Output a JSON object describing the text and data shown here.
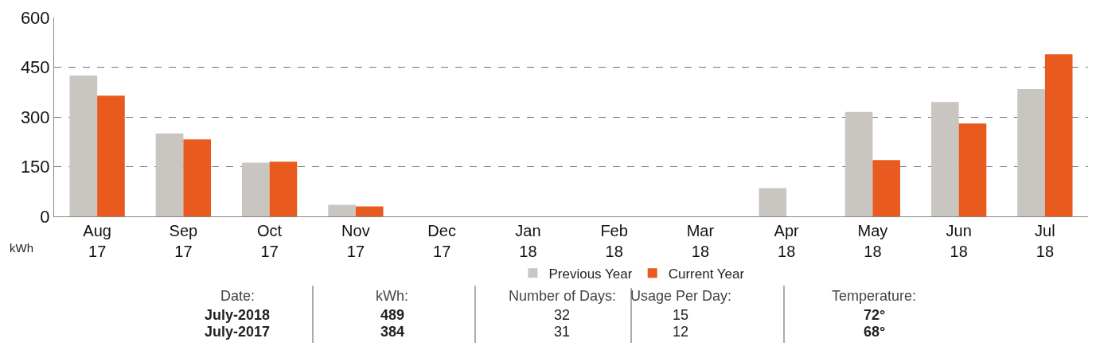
{
  "chart_data": {
    "type": "bar",
    "categories": [
      "Aug 17",
      "Sep 17",
      "Oct 17",
      "Nov 17",
      "Dec 17",
      "Jan 18",
      "Feb 18",
      "Mar 18",
      "Apr 18",
      "May 18",
      "Jun 18",
      "Jul 18"
    ],
    "series": [
      {
        "name": "Previous Year",
        "color": "#c9c6c1",
        "values": [
          425,
          250,
          162,
          35,
          null,
          null,
          null,
          null,
          85,
          315,
          345,
          384
        ]
      },
      {
        "name": "Current Year",
        "color": "#e85a1e",
        "values": [
          364,
          232,
          165,
          30,
          null,
          null,
          null,
          null,
          null,
          170,
          280,
          489
        ]
      }
    ],
    "ylabel": "kWh",
    "ylim": [
      0,
      600
    ],
    "yticks": [
      0,
      150,
      300,
      450,
      600
    ],
    "grid": "y",
    "legend": "bottom",
    "annotations": [
      "Date:",
      "kWh:",
      "Number of Days:",
      "Usage Per Day:",
      "Temperature:",
      "July-2018",
      "489",
      "32",
      "15",
      "72°",
      "July-2017",
      "384",
      "31",
      "12",
      "68°"
    ]
  }
}
